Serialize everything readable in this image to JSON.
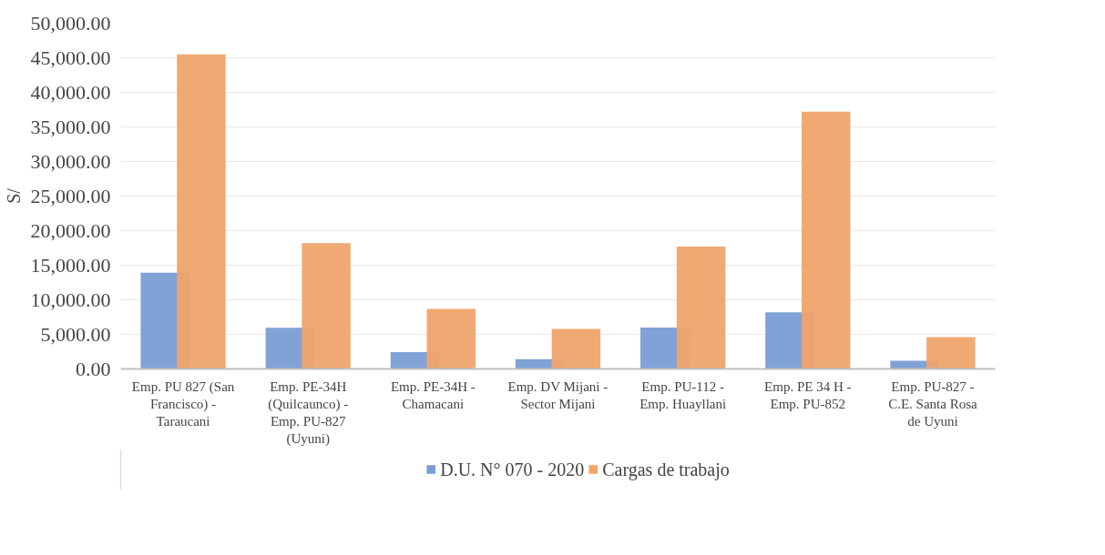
{
  "chart_data": {
    "type": "bar",
    "ylabel": "S/",
    "categories": [
      "Emp. PU 827 (San Francisco) - Taraucani",
      "Emp. PE-34H (Quilcaunco) - Emp. PU-827 (Uyuni)",
      "Emp. PE-34H - Chamacani",
      "Emp. DV Mijani - Sector Mijani",
      "Emp. PU-112 - Emp. Huayllani",
      "Emp. PE 34 H - Emp. PU-852",
      "Emp. PU-827 - C.E. Santa Rosa de Uyuni"
    ],
    "series": [
      {
        "name": "D.U. N° 070 - 2020",
        "color": "#7a9dd4",
        "values": [
          13900,
          5950,
          2450,
          1400,
          6000,
          8200,
          1200
        ]
      },
      {
        "name": "Cargas de trabajo",
        "color": "#f0a46c",
        "values": [
          45500,
          18200,
          8700,
          5800,
          17700,
          37200,
          4600
        ]
      }
    ],
    "ylim": [
      0,
      50000
    ],
    "yticks": [
      {
        "value": 0,
        "label": "0.00"
      },
      {
        "value": 5000,
        "label": "5,000.00"
      },
      {
        "value": 10000,
        "label": "10,000.00"
      },
      {
        "value": 15000,
        "label": "15,000.00"
      },
      {
        "value": 20000,
        "label": "20,000.00"
      },
      {
        "value": 25000,
        "label": "25,000.00"
      },
      {
        "value": 30000,
        "label": "30,000.00"
      },
      {
        "value": 35000,
        "label": "35,000.00"
      },
      {
        "value": 40000,
        "label": "40,000.00"
      },
      {
        "value": 45000,
        "label": "45,000.00"
      },
      {
        "value": 50000,
        "label": "50,000.00"
      }
    ],
    "grid": "y",
    "legend": "bottom"
  }
}
